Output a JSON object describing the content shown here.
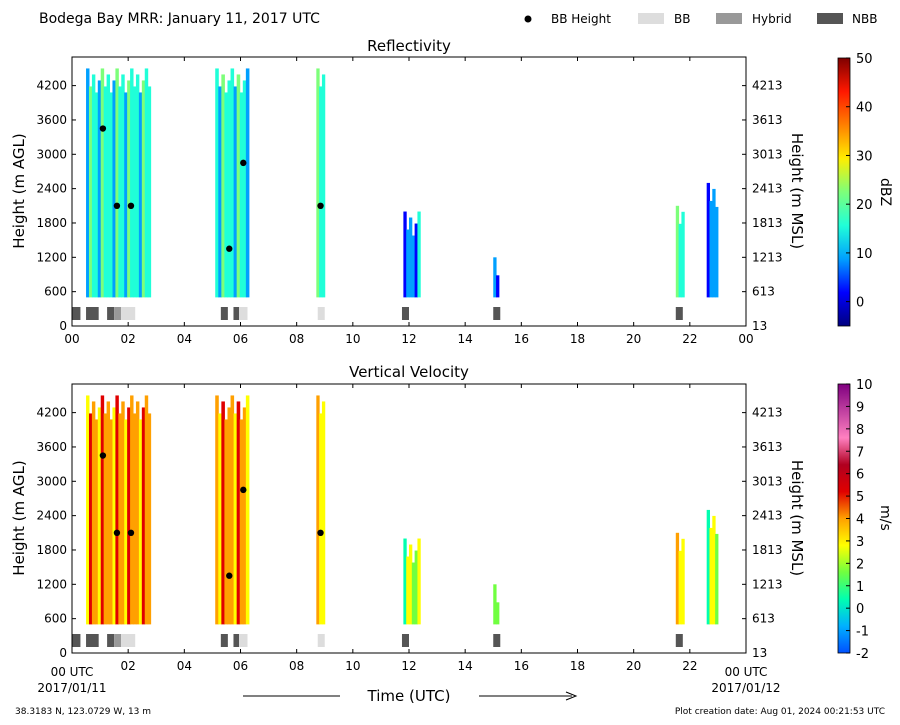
{
  "header": {
    "title": "Bodega Bay MRR:  January 11, 2017 UTC",
    "legend": [
      {
        "label": "BB Height",
        "kind": "dot",
        "color": "#000000"
      },
      {
        "label": "BB",
        "kind": "box",
        "color": "#dddddd"
      },
      {
        "label": "Hybrid",
        "kind": "box",
        "color": "#999999"
      },
      {
        "label": "NBB",
        "kind": "box",
        "color": "#555555"
      }
    ]
  },
  "footer": {
    "location": "38.3183 N, 123.0729 W, 13 m",
    "creation": "Plot creation date: Aug 01, 2024 00:21:53 UTC",
    "xlabel": "Time (UTC)",
    "start_label": "00 UTC",
    "start_date": "2017/01/11",
    "end_label": "00 UTC",
    "end_date": "2017/01/12"
  },
  "colors": {
    "bb": "#dddddd",
    "hybrid": "#999999",
    "nbb": "#555555",
    "dot": "#000000"
  },
  "chart_data": [
    {
      "type": "heatmap",
      "title": "Reflectivity",
      "ylabel": "Height (m AGL)",
      "ylabel_right": "Height (m MSL)",
      "xlim": [
        0,
        24
      ],
      "ylim": [
        0,
        4700
      ],
      "x_ticks": [
        "00",
        "02",
        "04",
        "06",
        "08",
        "10",
        "12",
        "14",
        "16",
        "18",
        "20",
        "22",
        "00"
      ],
      "y_ticks": [
        0,
        600,
        1200,
        1800,
        2400,
        3000,
        3600,
        4200
      ],
      "y_ticks_right": [
        "13",
        "613",
        "1213",
        "1813",
        "2413",
        "3013",
        "3613",
        "4213"
      ],
      "colorbar": {
        "label": "dBZ",
        "min": -5,
        "max": 50,
        "ticks": [
          "0",
          "10",
          "20",
          "30",
          "40",
          "50"
        ],
        "stops": [
          "#00007f",
          "#0000ff",
          "#00a0ff",
          "#20ffd8",
          "#7dff7a",
          "#ffee00",
          "#ff8000",
          "#ff1800",
          "#7f0000"
        ]
      },
      "series": [
        {
          "t0": 0.5,
          "t1": 2.8,
          "top": 4500,
          "value": 15
        },
        {
          "t0": 5.1,
          "t1": 6.3,
          "top": 4500,
          "value": 15
        },
        {
          "t0": 8.7,
          "t1": 9.0,
          "top": 4500,
          "value": 18
        },
        {
          "t0": 11.8,
          "t1": 12.4,
          "top": 2000,
          "value": 8
        },
        {
          "t0": 15.0,
          "t1": 15.2,
          "top": 1200,
          "value": 8
        },
        {
          "t0": 21.5,
          "t1": 21.8,
          "top": 2100,
          "value": 18
        },
        {
          "t0": 22.6,
          "t1": 23.0,
          "top": 2500,
          "value": 8
        }
      ]
    },
    {
      "type": "heatmap",
      "title": "Vertical Velocity",
      "ylabel": "Height (m AGL)",
      "ylabel_right": "Height (m MSL)",
      "xlim": [
        0,
        24
      ],
      "ylim": [
        0,
        4700
      ],
      "x_ticks": [
        "02",
        "04",
        "06",
        "08",
        "10",
        "12",
        "14",
        "16",
        "18",
        "20",
        "22"
      ],
      "y_ticks": [
        0,
        600,
        1200,
        1800,
        2400,
        3000,
        3600,
        4200
      ],
      "y_ticks_right": [
        "13",
        "613",
        "1213",
        "1813",
        "2413",
        "3013",
        "3613",
        "4213"
      ],
      "colorbar": {
        "label": "m/s",
        "min": -2,
        "max": 10,
        "ticks": [
          "-2",
          "-1",
          "0",
          "1",
          "2",
          "3",
          "4",
          "5",
          "6",
          "7",
          "8",
          "9",
          "10"
        ],
        "stops": [
          "#0050ff",
          "#00b0ff",
          "#00ffb0",
          "#70ff40",
          "#ffff00",
          "#ffa000",
          "#e00000",
          "#b00020",
          "#ff80c0",
          "#c040a0",
          "#800080"
        ]
      },
      "series": [
        {
          "t0": 0.5,
          "t1": 2.8,
          "top": 4500,
          "value": 4
        },
        {
          "t0": 5.1,
          "t1": 6.3,
          "top": 4500,
          "value": 4
        },
        {
          "t0": 8.7,
          "t1": 9.0,
          "top": 4500,
          "value": 3
        },
        {
          "t0": 11.8,
          "t1": 12.4,
          "top": 2000,
          "value": 2
        },
        {
          "t0": 15.0,
          "t1": 15.2,
          "top": 1200,
          "value": 2
        },
        {
          "t0": 21.5,
          "t1": 21.8,
          "top": 2100,
          "value": 3
        },
        {
          "t0": 22.6,
          "t1": 23.0,
          "top": 2500,
          "value": 2
        }
      ]
    }
  ],
  "bb_heights": [
    {
      "time": 1.1,
      "height": 3450
    },
    {
      "time": 1.6,
      "height": 2100
    },
    {
      "time": 2.1,
      "height": 2100
    },
    {
      "time": 5.6,
      "height": 1350
    },
    {
      "time": 6.1,
      "height": 2850
    },
    {
      "time": 8.85,
      "height": 2100
    }
  ],
  "bb_types": [
    {
      "t0": 0.0,
      "t1": 0.3,
      "type": "nbb"
    },
    {
      "t0": 0.5,
      "t1": 0.95,
      "type": "nbb"
    },
    {
      "t0": 1.25,
      "t1": 1.5,
      "type": "nbb"
    },
    {
      "t0": 1.5,
      "t1": 1.75,
      "type": "hybrid"
    },
    {
      "t0": 1.75,
      "t1": 2.25,
      "type": "bb"
    },
    {
      "t0": 5.3,
      "t1": 5.55,
      "type": "nbb"
    },
    {
      "t0": 5.75,
      "t1": 5.95,
      "type": "nbb"
    },
    {
      "t0": 5.95,
      "t1": 6.25,
      "type": "bb"
    },
    {
      "t0": 8.75,
      "t1": 9.0,
      "type": "bb"
    },
    {
      "t0": 11.75,
      "t1": 12.0,
      "type": "nbb"
    },
    {
      "t0": 15.0,
      "t1": 15.25,
      "type": "nbb"
    },
    {
      "t0": 21.5,
      "t1": 21.75,
      "type": "nbb"
    }
  ]
}
